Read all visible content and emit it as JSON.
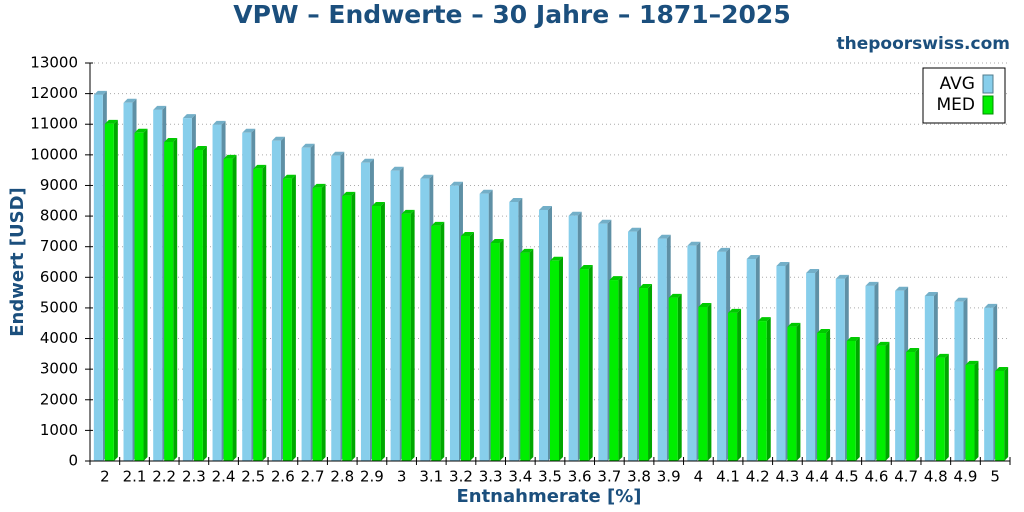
{
  "chart_data": {
    "type": "bar",
    "title": "VPW – Endwerte – 30 Jahre – 1871–2025",
    "subtitle": "thepoorswiss.com",
    "x_label": "Entnahmerate [%]",
    "y_label": "Endwert [USD]",
    "categories": [
      "2",
      "2.1",
      "2.2",
      "2.3",
      "2.4",
      "2.5",
      "2.6",
      "2.7",
      "2.8",
      "2.9",
      "3",
      "3.1",
      "3.2",
      "3.3",
      "3.4",
      "3.5",
      "3.6",
      "3.7",
      "3.8",
      "3.9",
      "4",
      "4.1",
      "4.2",
      "4.3",
      "4.4",
      "4.5",
      "4.6",
      "4.7",
      "4.8",
      "4.9",
      "5"
    ],
    "series": [
      {
        "name": "AVG",
        "color": "#87ceeb",
        "values": [
          11960,
          11700,
          11470,
          11200,
          10980,
          10720,
          10460,
          10230,
          9970,
          9740,
          9480,
          9220,
          8990,
          8730,
          8460,
          8200,
          8010,
          7750,
          7490,
          7260,
          7030,
          6830,
          6600,
          6370,
          6140,
          5950,
          5720,
          5560,
          5390,
          5200,
          5000
        ]
      },
      {
        "name": "MED",
        "color": "#00ee00",
        "values": [
          11010,
          10720,
          10420,
          10160,
          9870,
          9540,
          9220,
          8920,
          8660,
          8330,
          8070,
          7680,
          7350,
          7120,
          6800,
          6540,
          6270,
          5910,
          5650,
          5330,
          5030,
          4840,
          4570,
          4380,
          4180,
          3920,
          3760,
          3560,
          3370,
          3140,
          2940
        ]
      }
    ],
    "ylim": [
      0,
      13000
    ],
    "yticks": [
      0,
      1000,
      2000,
      3000,
      4000,
      5000,
      6000,
      7000,
      8000,
      9000,
      10000,
      11000,
      12000,
      13000
    ],
    "grid": true,
    "legend": "top-right"
  }
}
